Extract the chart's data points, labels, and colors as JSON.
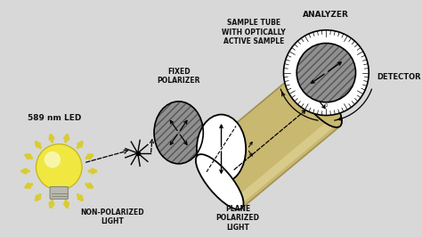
{
  "bg_color": "#dcdcdc",
  "labels": {
    "led": "589 nm LED",
    "non_polarized": "NON-POLARIZED\nLIGHT",
    "fixed_polarizer": "FIXED\nPOLARIZER",
    "plane_polarized": "PLANE\nPOLARIZED\nLIGHT",
    "sample_tube": "SAMPLE TUBE\nWITH OPTICALLY\nACTIVE SAMPLE",
    "analyzer": "ANALYZER",
    "detector": "DETECTOR"
  },
  "colors": {
    "bg": "#d8d8d8",
    "bulb_yellow": "#f0e840",
    "bulb_yellow2": "#e0d020",
    "rays_color": "#d8cc30",
    "tube_color": "#c8b870",
    "tube_shine": "#ddd090",
    "tube_dark": "#a09050",
    "disk_gray": "#909090",
    "white_disk": "#ffffff",
    "arrow_color": "#111111"
  }
}
